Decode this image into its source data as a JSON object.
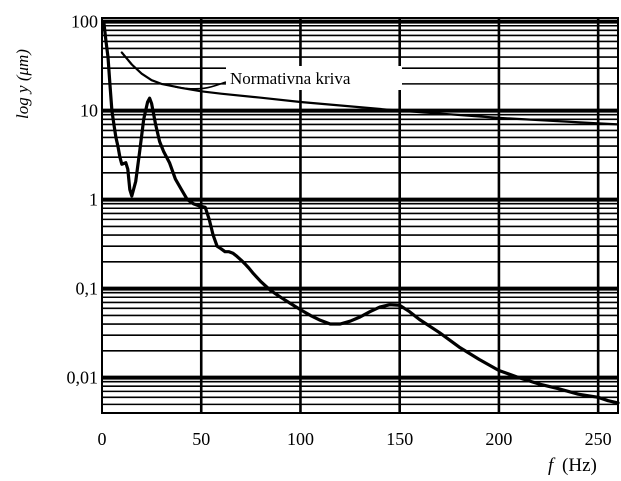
{
  "chart_data": {
    "type": "line",
    "xlabel_var": "f",
    "xlabel_unit": "(Hz)",
    "ylabel": "log y (μm)",
    "x_ticks": [
      "0",
      "50",
      "100",
      "150",
      "200",
      "250"
    ],
    "x_tick_values": [
      0,
      50,
      100,
      150,
      200,
      250
    ],
    "y_ticks": [
      "100",
      "10",
      "1",
      "0,1",
      "0,01"
    ],
    "y_tick_values": [
      100,
      10,
      1,
      0.1,
      0.01
    ],
    "xlim": [
      0,
      260
    ],
    "ylim": [
      0.004,
      110
    ],
    "y_scale": "log",
    "grid": true,
    "annotation": "Normativna kriva",
    "series": [
      {
        "name": "Normativna kriva",
        "x": [
          10,
          15,
          20,
          25,
          30,
          35,
          40,
          50,
          60,
          80,
          100,
          150,
          200,
          250,
          260
        ],
        "y": [
          45,
          33,
          26,
          22,
          20,
          19,
          18,
          16.5,
          15.5,
          14,
          12.5,
          10,
          8.3,
          7.2,
          7.0
        ]
      },
      {
        "x": [
          1,
          2,
          3,
          4,
          5,
          6,
          7,
          8,
          9,
          10,
          12,
          13,
          14,
          15,
          17,
          19,
          21,
          23,
          24,
          25,
          27,
          29,
          31,
          34,
          37,
          40,
          43,
          46,
          49,
          52,
          54,
          56,
          58,
          60,
          62,
          64,
          66,
          68,
          70,
          72,
          74,
          76,
          80,
          85,
          90,
          95,
          100,
          105,
          110,
          115,
          120,
          125,
          130,
          135,
          140,
          145,
          150,
          155,
          160,
          170,
          180,
          190,
          200,
          210,
          220,
          230,
          240,
          250,
          255,
          260
        ],
        "y": [
          95,
          60,
          40,
          20,
          10,
          7,
          5,
          4,
          3,
          2.5,
          2.6,
          2.2,
          1.3,
          1.1,
          1.6,
          3.5,
          8,
          12.5,
          13.8,
          12,
          7,
          4.5,
          3.5,
          2.6,
          1.7,
          1.3,
          1.0,
          0.9,
          0.85,
          0.82,
          0.6,
          0.4,
          0.3,
          0.28,
          0.26,
          0.26,
          0.25,
          0.23,
          0.21,
          0.19,
          0.17,
          0.15,
          0.12,
          0.095,
          0.08,
          0.068,
          0.058,
          0.05,
          0.044,
          0.04,
          0.04,
          0.043,
          0.048,
          0.055,
          0.062,
          0.066,
          0.065,
          0.055,
          0.045,
          0.032,
          0.022,
          0.016,
          0.012,
          0.01,
          0.0085,
          0.0075,
          0.0065,
          0.006,
          0.0055,
          0.0052
        ]
      }
    ]
  }
}
